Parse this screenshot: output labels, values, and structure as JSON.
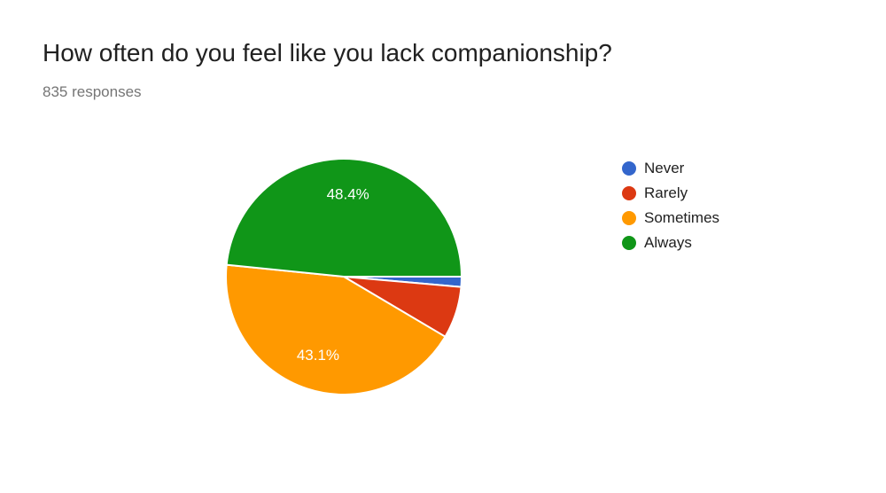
{
  "header": {
    "title": "How often do you feel like you lack companionship?",
    "responses": "835 responses"
  },
  "chart_data": {
    "type": "pie",
    "categories": [
      "Never",
      "Rarely",
      "Sometimes",
      "Always"
    ],
    "values": [
      1.4,
      7.1,
      43.1,
      48.4
    ],
    "colors": [
      "#3366cc",
      "#dc3912",
      "#ff9900",
      "#109618"
    ],
    "slice_labels": [
      "",
      "",
      "43.1%",
      "48.4%"
    ],
    "legend_position": "right",
    "start_direction": "east, clockwise"
  }
}
